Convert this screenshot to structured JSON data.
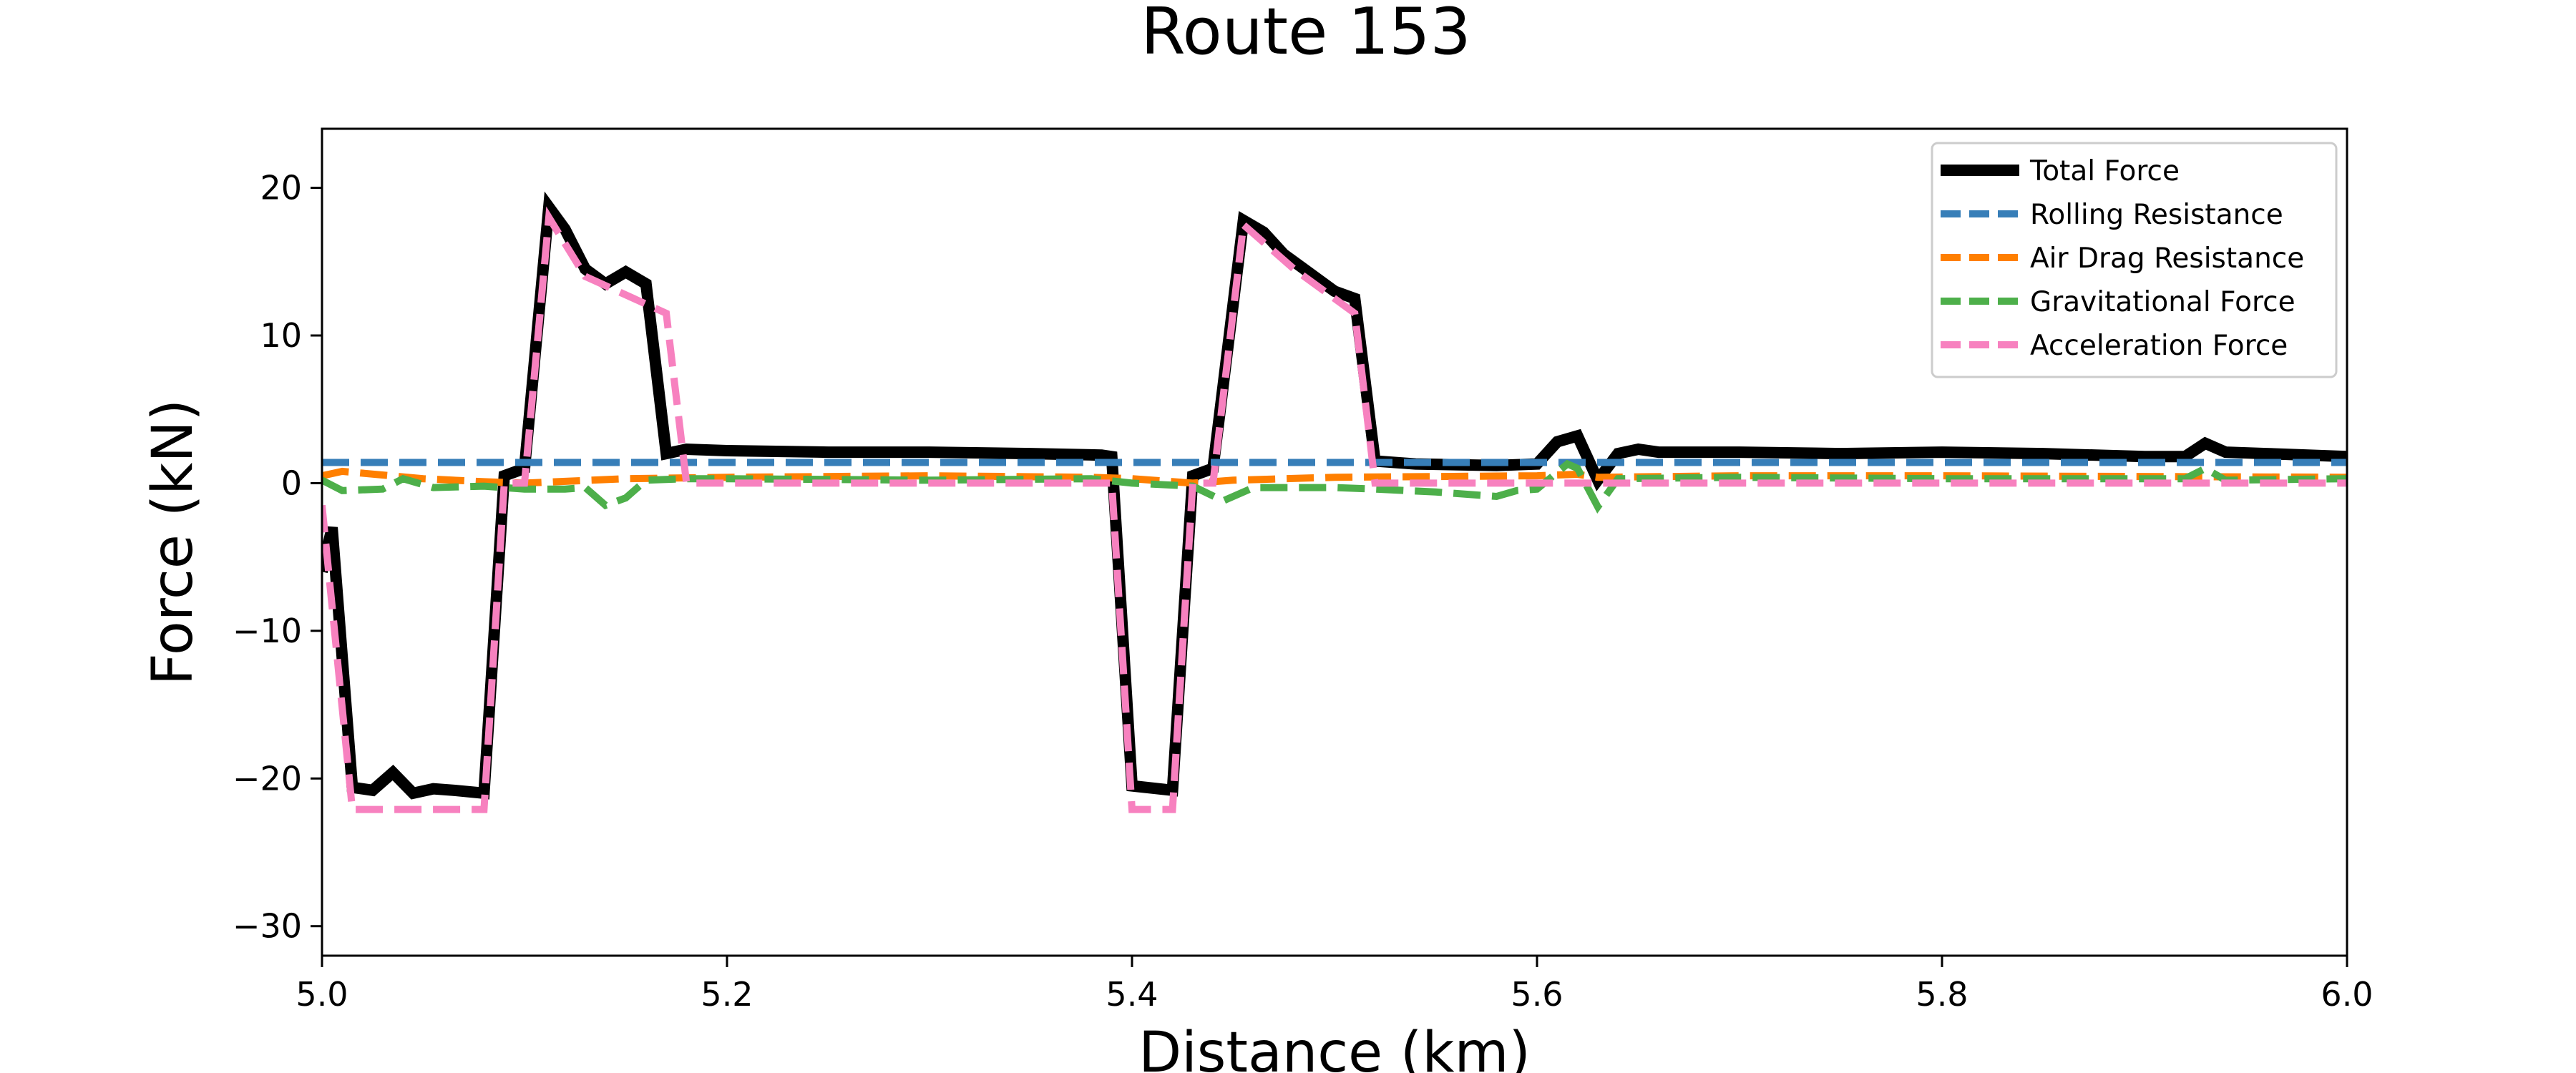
{
  "chart_data": {
    "type": "line",
    "title": "Route 153",
    "xlabel": "Distance (km)",
    "ylabel": "Force (kN)",
    "xlim": [
      5.0,
      6.0
    ],
    "ylim": [
      -32,
      24
    ],
    "xticks": [
      5.0,
      5.2,
      5.4,
      5.6,
      5.8,
      6.0
    ],
    "xtick_labels": [
      "5.0",
      "5.2",
      "5.4",
      "5.6",
      "5.8",
      "6.0"
    ],
    "yticks": [
      -30,
      -20,
      -10,
      0,
      10,
      20
    ],
    "ytick_labels": [
      "−30",
      "−20",
      "−10",
      "0",
      "10",
      "20"
    ],
    "grid": false,
    "legend_position": "top-right",
    "series": [
      {
        "name": "Total Force",
        "color": "#000000",
        "style": "solid",
        "points": [
          [
            5.0,
            -6
          ],
          [
            5.005,
            -3
          ],
          [
            5.015,
            -20.6
          ],
          [
            5.025,
            -20.8
          ],
          [
            5.035,
            -19.6
          ],
          [
            5.045,
            -21.0
          ],
          [
            5.055,
            -20.7
          ],
          [
            5.065,
            -20.8
          ],
          [
            5.08,
            -21.0
          ],
          [
            5.09,
            0.5
          ],
          [
            5.1,
            1.0
          ],
          [
            5.112,
            18.7
          ],
          [
            5.12,
            17.2
          ],
          [
            5.13,
            14.5
          ],
          [
            5.14,
            13.5
          ],
          [
            5.15,
            14.3
          ],
          [
            5.16,
            13.5
          ],
          [
            5.17,
            2.0
          ],
          [
            5.18,
            2.3
          ],
          [
            5.2,
            2.2
          ],
          [
            5.25,
            2.1
          ],
          [
            5.3,
            2.1
          ],
          [
            5.35,
            2.0
          ],
          [
            5.385,
            1.9
          ],
          [
            5.39,
            1.8
          ],
          [
            5.4,
            -20.5
          ],
          [
            5.42,
            -20.8
          ],
          [
            5.43,
            0.5
          ],
          [
            5.44,
            1.0
          ],
          [
            5.455,
            17.8
          ],
          [
            5.465,
            17.0
          ],
          [
            5.475,
            15.5
          ],
          [
            5.485,
            14.5
          ],
          [
            5.5,
            13.0
          ],
          [
            5.51,
            12.5
          ],
          [
            5.52,
            1.5
          ],
          [
            5.54,
            1.3
          ],
          [
            5.58,
            1.2
          ],
          [
            5.6,
            1.3
          ],
          [
            5.61,
            2.8
          ],
          [
            5.62,
            3.2
          ],
          [
            5.63,
            0.2
          ],
          [
            5.64,
            2.0
          ],
          [
            5.65,
            2.3
          ],
          [
            5.66,
            2.1
          ],
          [
            5.7,
            2.1
          ],
          [
            5.75,
            2.0
          ],
          [
            5.8,
            2.1
          ],
          [
            5.85,
            2.0
          ],
          [
            5.9,
            1.8
          ],
          [
            5.92,
            1.8
          ],
          [
            5.93,
            2.7
          ],
          [
            5.94,
            2.1
          ],
          [
            5.96,
            2.0
          ],
          [
            6.0,
            1.8
          ]
        ]
      },
      {
        "name": "Rolling Resistance",
        "color": "#377eb8",
        "style": "dashed",
        "points": [
          [
            5.0,
            1.4
          ],
          [
            6.0,
            1.4
          ]
        ]
      },
      {
        "name": "Air Drag Resistance",
        "color": "#ff7f00",
        "style": "dashed",
        "points": [
          [
            5.0,
            0.5
          ],
          [
            5.01,
            0.8
          ],
          [
            5.05,
            0.3
          ],
          [
            5.08,
            0.1
          ],
          [
            5.1,
            0.0
          ],
          [
            5.15,
            0.3
          ],
          [
            5.2,
            0.4
          ],
          [
            5.3,
            0.5
          ],
          [
            5.38,
            0.4
          ],
          [
            5.4,
            0.3
          ],
          [
            5.43,
            0.0
          ],
          [
            5.45,
            0.2
          ],
          [
            5.5,
            0.4
          ],
          [
            5.6,
            0.5
          ],
          [
            5.62,
            0.6
          ],
          [
            5.63,
            0.4
          ],
          [
            5.7,
            0.5
          ],
          [
            5.8,
            0.5
          ],
          [
            6.0,
            0.4
          ]
        ]
      },
      {
        "name": "Gravitational Force",
        "color": "#4daf4a",
        "style": "dashed",
        "points": [
          [
            5.0,
            0.2
          ],
          [
            5.01,
            -0.5
          ],
          [
            5.03,
            -0.4
          ],
          [
            5.04,
            0.3
          ],
          [
            5.055,
            -0.3
          ],
          [
            5.08,
            -0.2
          ],
          [
            5.1,
            -0.4
          ],
          [
            5.12,
            -0.4
          ],
          [
            5.13,
            -0.3
          ],
          [
            5.14,
            -1.5
          ],
          [
            5.15,
            -1.0
          ],
          [
            5.16,
            0.2
          ],
          [
            5.18,
            0.3
          ],
          [
            5.2,
            0.3
          ],
          [
            5.3,
            0.2
          ],
          [
            5.38,
            0.3
          ],
          [
            5.4,
            0.0
          ],
          [
            5.43,
            -0.2
          ],
          [
            5.445,
            -1.2
          ],
          [
            5.46,
            -0.3
          ],
          [
            5.5,
            -0.3
          ],
          [
            5.52,
            -0.4
          ],
          [
            5.55,
            -0.6
          ],
          [
            5.58,
            -0.9
          ],
          [
            5.59,
            -0.5
          ],
          [
            5.6,
            -0.4
          ],
          [
            5.615,
            1.3
          ],
          [
            5.62,
            1.0
          ],
          [
            5.63,
            -1.6
          ],
          [
            5.64,
            0.3
          ],
          [
            5.7,
            0.4
          ],
          [
            5.8,
            0.3
          ],
          [
            5.9,
            0.3
          ],
          [
            5.92,
            0.3
          ],
          [
            5.93,
            1.0
          ],
          [
            5.94,
            0.2
          ],
          [
            6.0,
            0.3
          ]
        ]
      },
      {
        "name": "Acceleration Force",
        "color": "#f781bf",
        "style": "dashed",
        "points": [
          [
            5.0,
            -1.5
          ],
          [
            5.015,
            -22.1
          ],
          [
            5.04,
            -22.1
          ],
          [
            5.08,
            -22.1
          ],
          [
            5.09,
            0.0
          ],
          [
            5.1,
            0.0
          ],
          [
            5.112,
            18.0
          ],
          [
            5.13,
            14.0
          ],
          [
            5.17,
            11.5
          ],
          [
            5.18,
            0.0
          ],
          [
            5.2,
            0.0
          ],
          [
            5.3,
            0.0
          ],
          [
            5.39,
            0.0
          ],
          [
            5.4,
            -22.1
          ],
          [
            5.42,
            -22.1
          ],
          [
            5.43,
            0.0
          ],
          [
            5.44,
            0.0
          ],
          [
            5.455,
            17.5
          ],
          [
            5.48,
            14.5
          ],
          [
            5.51,
            11.5
          ],
          [
            5.52,
            0.0
          ],
          [
            5.6,
            0.0
          ],
          [
            5.7,
            0.0
          ],
          [
            5.8,
            0.0
          ],
          [
            5.9,
            0.0
          ],
          [
            6.0,
            0.0
          ]
        ]
      }
    ]
  }
}
